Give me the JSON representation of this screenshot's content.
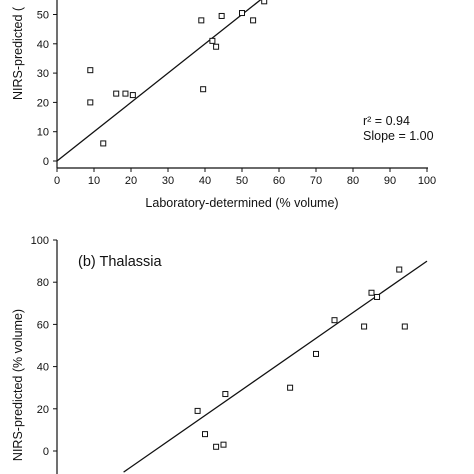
{
  "colors": {
    "ink": "#111111",
    "background": "#ffffff"
  },
  "chart_data": [
    {
      "type": "scatter",
      "xlabel": "Laboratory-determined (% volume)",
      "ylabel": "NIRS-predicted (",
      "x_ticks": [
        "0",
        "10",
        "20",
        "30",
        "40",
        "50",
        "60",
        "70",
        "80",
        "90",
        "100"
      ],
      "y_ticks": [
        "0",
        "10",
        "20",
        "30",
        "40",
        "50"
      ],
      "xlim": [
        0,
        100
      ],
      "ylim": [
        0,
        55
      ],
      "annotations": [
        "r² = 0.94",
        "Slope = 1.00"
      ],
      "fit_line": {
        "x": [
          0,
          57
        ],
        "y": [
          0,
          57
        ]
      },
      "points": [
        {
          "x": 9,
          "y": 31
        },
        {
          "x": 9,
          "y": 20
        },
        {
          "x": 12.5,
          "y": 6
        },
        {
          "x": 16,
          "y": 23
        },
        {
          "x": 18.5,
          "y": 23
        },
        {
          "x": 20.5,
          "y": 22.5
        },
        {
          "x": 39,
          "y": 48
        },
        {
          "x": 39.5,
          "y": 24.5
        },
        {
          "x": 42,
          "y": 41
        },
        {
          "x": 43,
          "y": 39
        },
        {
          "x": 44.5,
          "y": 49.5
        },
        {
          "x": 50,
          "y": 50.5
        },
        {
          "x": 53,
          "y": 48
        },
        {
          "x": 56,
          "y": 54.5
        }
      ]
    },
    {
      "type": "scatter",
      "title": "(b) Thalassia",
      "ylabel": "NIRS-predicted (% volume)",
      "y_ticks": [
        "0",
        "20",
        "40",
        "60",
        "80",
        "100"
      ],
      "xlim": [
        0,
        100
      ],
      "ylim": [
        -6,
        100
      ],
      "fit_line": {
        "x": [
          18,
          100
        ],
        "y": [
          -10,
          90
        ]
      },
      "points": [
        {
          "x": 38,
          "y": 19
        },
        {
          "x": 40,
          "y": 8
        },
        {
          "x": 43,
          "y": 2
        },
        {
          "x": 45,
          "y": 3
        },
        {
          "x": 45.5,
          "y": 27
        },
        {
          "x": 63,
          "y": 30
        },
        {
          "x": 70,
          "y": 46
        },
        {
          "x": 75,
          "y": 62
        },
        {
          "x": 83,
          "y": 59
        },
        {
          "x": 85,
          "y": 75
        },
        {
          "x": 86.5,
          "y": 73
        },
        {
          "x": 92.5,
          "y": 86
        },
        {
          "x": 94,
          "y": 59
        }
      ]
    }
  ]
}
